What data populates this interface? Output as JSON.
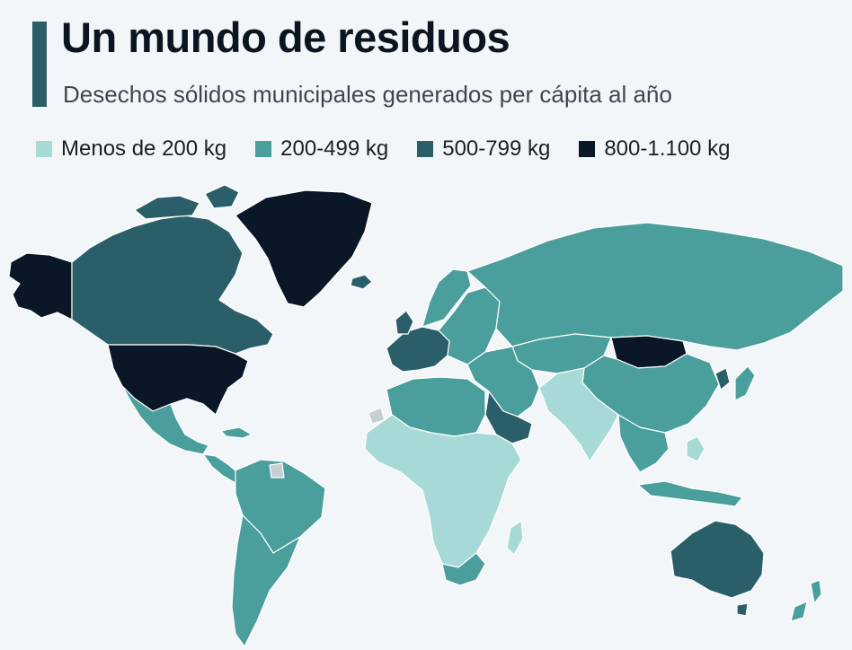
{
  "header": {
    "title": "Un mundo de residuos",
    "subtitle": "Desechos sólidos municipales generados per cápita al año"
  },
  "legend": [
    {
      "label": "Menos de 200 kg",
      "color": "#a7dad6"
    },
    {
      "label": "200-499 kg",
      "color": "#4a9e9c"
    },
    {
      "label": "500-799 kg",
      "color": "#2a5f6a"
    },
    {
      "label": "800-1.100 kg",
      "color": "#0a1726"
    }
  ],
  "colors": {
    "accent": "#2a5f6a",
    "background": "#f3f6f9",
    "no_data": "#c9ced2",
    "border": "#ffffff"
  }
}
